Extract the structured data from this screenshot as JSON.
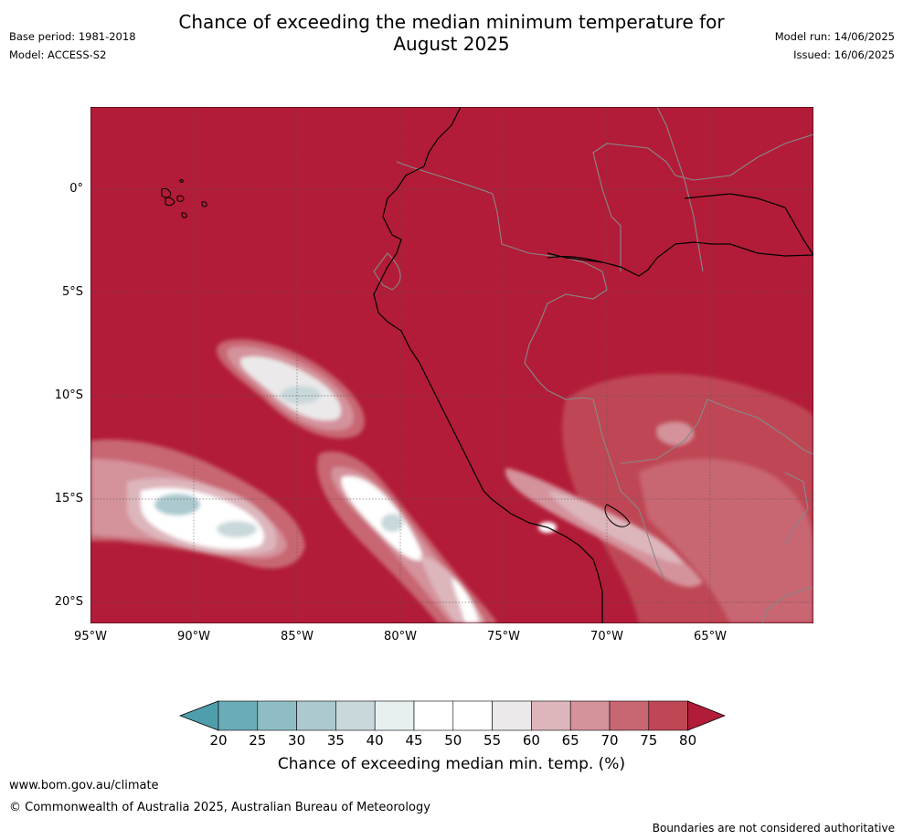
{
  "title_line1": "Chance of exceeding the median minimum temperature for",
  "title_line2": "August 2025",
  "base_period": "Base period: 1981-2018",
  "model": "Model: ACCESS-S2",
  "model_run": "Model run: 14/06/2025",
  "issued": "Issued: 16/06/2025",
  "lat_labels": [
    "0°",
    "5°S",
    "10°S",
    "15°S",
    "20°S"
  ],
  "lon_labels": [
    "95°W",
    "90°W",
    "85°W",
    "80°W",
    "75°W",
    "70°W",
    "65°W"
  ],
  "colorbar": {
    "ticks": [
      "20",
      "25",
      "30",
      "35",
      "40",
      "45",
      "50",
      "55",
      "60",
      "65",
      "70",
      "75",
      "80"
    ],
    "colors": [
      "#4f9eab",
      "#6aacb8",
      "#8ebdc5",
      "#abc9cf",
      "#c9d8da",
      "#e7eff1",
      "#ffffff",
      "#ffffff",
      "#ebe9ea",
      "#ddb6bc",
      "#d4929b",
      "#c86672",
      "#bf4655",
      "#b21c38"
    ],
    "label": "Chance of exceeding median min. temp. (%)"
  },
  "footer_url": "www.bom.gov.au/climate",
  "copyright": "© Commonwealth of Australia 2025, Australian Bureau of Meteorology",
  "disclaimer": "Boundaries are not considered authoritative"
}
